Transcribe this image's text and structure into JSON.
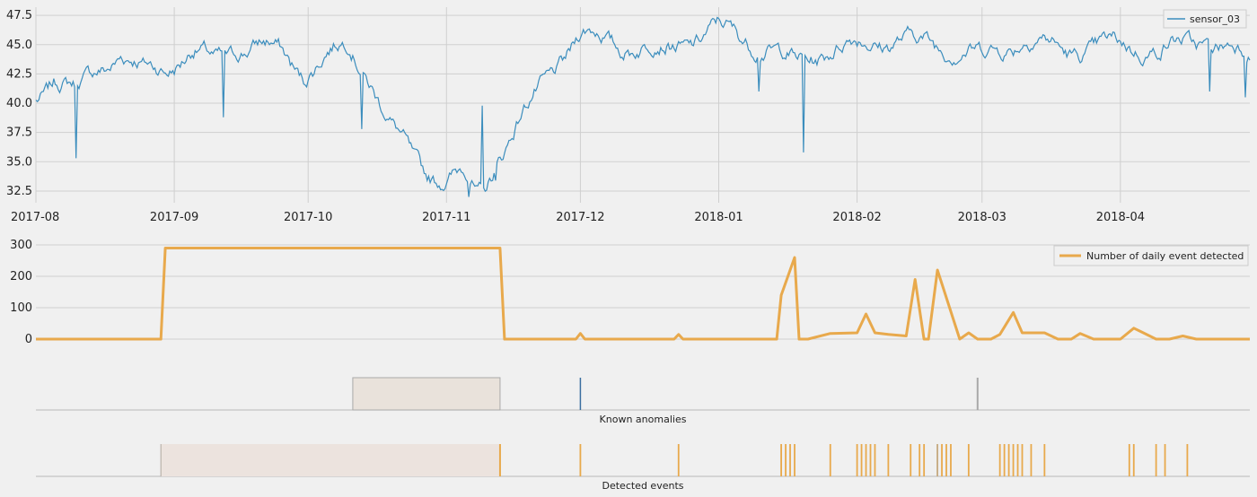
{
  "chart_data": [
    {
      "type": "line",
      "x_tick_labels": [
        "2017-08",
        "2017-09",
        "2017-10",
        "2017-11",
        "2017-12",
        "2018-01",
        "2018-02",
        "2018-03",
        "2018-04"
      ],
      "xlim": [
        "2017-08-01",
        "2018-04-30"
      ],
      "y_tick_labels": [
        "47.5",
        "45.0",
        "42.5",
        "40.0",
        "37.5",
        "35.0",
        "32.5"
      ],
      "ylim": [
        31.5,
        48.2
      ],
      "grid": true,
      "legend_position": "top-right",
      "series": [
        {
          "name": "sensor_03",
          "color": "#3b8dbd",
          "x": [
            "2017-08-01",
            "2017-08-05",
            "2017-08-10",
            "2017-08-15",
            "2017-08-20",
            "2017-08-25",
            "2017-08-30",
            "2017-09-05",
            "2017-09-10",
            "2017-09-15",
            "2017-09-20",
            "2017-09-25",
            "2017-09-30",
            "2017-10-05",
            "2017-10-10",
            "2017-10-15",
            "2017-10-20",
            "2017-10-25",
            "2017-10-28",
            "2017-11-01",
            "2017-11-05",
            "2017-11-08",
            "2017-11-10",
            "2017-11-12",
            "2017-11-15",
            "2017-11-20",
            "2017-11-25",
            "2017-12-01",
            "2017-12-10",
            "2017-12-20",
            "2018-01-01",
            "2018-01-10",
            "2018-01-18",
            "2018-01-25",
            "2018-02-01",
            "2018-02-10",
            "2018-02-20",
            "2018-03-01",
            "2018-03-10",
            "2018-03-20",
            "2018-04-01",
            "2018-04-10",
            "2018-04-20",
            "2018-04-30"
          ],
          "values": [
            40.5,
            42.2,
            41.0,
            43.0,
            44.2,
            42.8,
            43.0,
            44.5,
            43.5,
            44.8,
            45.0,
            44.3,
            42.5,
            44.0,
            45.0,
            42.0,
            37.8,
            35.0,
            34.2,
            33.5,
            34.0,
            32.0,
            33.0,
            35.0,
            37.0,
            40.0,
            43.0,
            46.0,
            45.0,
            44.5,
            46.5,
            45.0,
            43.5,
            44.5,
            45.0,
            45.5,
            45.0,
            44.0,
            45.5,
            44.5,
            45.0,
            44.5,
            45.5,
            44.0
          ]
        }
      ]
    },
    {
      "type": "line",
      "x_tick_labels": [],
      "y_tick_labels": [
        "300",
        "200",
        "100",
        "0"
      ],
      "ylim": [
        0,
        300
      ],
      "grid": true,
      "legend_position": "top-right",
      "series": [
        {
          "name": "Number of daily event detected",
          "color": "#e8a94c",
          "x": [
            "2017-08-01",
            "2017-08-29",
            "2017-08-30",
            "2017-11-13",
            "2017-11-14",
            "2017-11-30",
            "2017-12-01",
            "2017-12-02",
            "2017-12-22",
            "2017-12-23",
            "2017-12-24",
            "2018-01-14",
            "2018-01-15",
            "2018-01-18",
            "2018-01-19",
            "2018-01-21",
            "2018-01-26",
            "2018-02-01",
            "2018-02-03",
            "2018-02-05",
            "2018-02-08",
            "2018-02-12",
            "2018-02-14",
            "2018-02-16",
            "2018-02-17",
            "2018-02-19",
            "2018-02-24",
            "2018-02-26",
            "2018-02-28",
            "2018-03-03",
            "2018-03-05",
            "2018-03-08",
            "2018-03-10",
            "2018-03-15",
            "2018-03-18",
            "2018-03-21",
            "2018-03-23",
            "2018-03-26",
            "2018-03-30",
            "2018-04-01",
            "2018-04-04",
            "2018-04-09",
            "2018-04-12",
            "2018-04-15",
            "2018-04-18",
            "2018-04-30"
          ],
          "values": [
            0,
            0,
            290,
            290,
            0,
            0,
            18,
            0,
            0,
            15,
            0,
            0,
            140,
            260,
            0,
            0,
            18,
            20,
            80,
            20,
            15,
            10,
            190,
            0,
            0,
            220,
            0,
            20,
            0,
            0,
            15,
            85,
            20,
            20,
            0,
            0,
            18,
            0,
            0,
            0,
            35,
            0,
            0,
            10,
            0,
            0
          ]
        }
      ]
    }
  ],
  "panels": {
    "known_caption": "Known anomalies",
    "detected_caption": "Detected events"
  }
}
